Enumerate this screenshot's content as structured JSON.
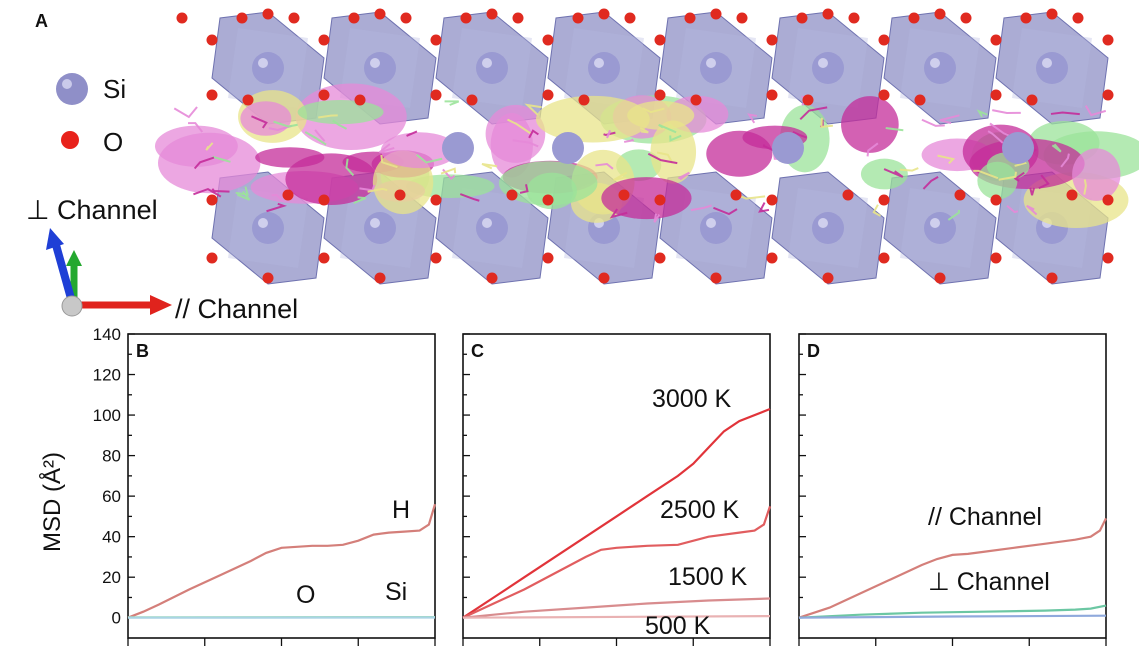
{
  "figure": {
    "panel_a": {
      "letter": "A",
      "legend": [
        {
          "label": "Si",
          "color": "#8f8fc8"
        },
        {
          "label": "O",
          "color": "#e8221b"
        }
      ],
      "axis_perp_label": "⊥ Channel",
      "axis_par_label": "// Channel",
      "colors": {
        "octahedron": "#8a8cc4",
        "si_atom": "#9a9ad2",
        "o_atom": "#e02a20",
        "trajectory_yellow": "#e8e48a",
        "trajectory_magenta": "#c42c9a",
        "trajectory_green": "#9be39a",
        "trajectory_pink": "#e68ad8"
      },
      "axis_arrow_colors": {
        "x": "#e0231d",
        "y": "#23a82f",
        "z": "#1f3fd6"
      }
    }
  },
  "chart_data": [
    {
      "type": "line",
      "panel": "B",
      "ylabel": "MSD (Å²)",
      "ylim": [
        -10,
        140
      ],
      "yticks": [
        0,
        20,
        40,
        60,
        80,
        100,
        120,
        140
      ],
      "xlim": [
        0,
        1
      ],
      "annotations": [
        "H",
        "O",
        "Si"
      ],
      "series": [
        {
          "name": "H",
          "color": "#d47f7a",
          "x": [
            0,
            0.05,
            0.1,
            0.2,
            0.3,
            0.4,
            0.45,
            0.5,
            0.55,
            0.6,
            0.65,
            0.7,
            0.75,
            0.8,
            0.85,
            0.9,
            0.95,
            0.98,
            1.0
          ],
          "y": [
            0,
            3,
            6.5,
            14,
            21,
            28,
            32,
            34.5,
            35,
            35.5,
            35.5,
            36,
            38,
            41,
            42,
            42.5,
            43,
            46,
            56
          ]
        },
        {
          "name": "O",
          "color": "#9bdcb0",
          "x": [
            0,
            1
          ],
          "y": [
            0.2,
            0.3
          ]
        },
        {
          "name": "Si",
          "color": "#a9d4e4",
          "x": [
            0,
            1
          ],
          "y": [
            0,
            0.1
          ]
        }
      ]
    },
    {
      "type": "line",
      "panel": "C",
      "ylim": [
        -10,
        140
      ],
      "xlim": [
        0,
        1
      ],
      "annotations": [
        "3000 K",
        "2500 K",
        "1500 K",
        "500 K"
      ],
      "series": [
        {
          "name": "3000 K",
          "color": "#e1343a",
          "x": [
            0,
            0.1,
            0.2,
            0.3,
            0.4,
            0.5,
            0.6,
            0.7,
            0.75,
            0.8,
            0.85,
            0.9,
            1.0
          ],
          "y": [
            0,
            10,
            20,
            30,
            40,
            50,
            60,
            70,
            76,
            84,
            92,
            97,
            103
          ]
        },
        {
          "name": "2500 K",
          "color": "#e15d5f",
          "x": [
            0,
            0.1,
            0.2,
            0.3,
            0.4,
            0.45,
            0.5,
            0.55,
            0.6,
            0.7,
            0.8,
            0.9,
            0.95,
            0.98,
            1.0
          ],
          "y": [
            0,
            7,
            14,
            22,
            30,
            33.5,
            34.5,
            35,
            35.5,
            36,
            40,
            42,
            43,
            46,
            55
          ]
        },
        {
          "name": "1500 K",
          "color": "#d88c8e",
          "x": [
            0,
            0.2,
            0.4,
            0.6,
            0.8,
            1.0
          ],
          "y": [
            0,
            3,
            5,
            7,
            8.5,
            9.5
          ]
        },
        {
          "name": "500 K",
          "color": "#e9b2b3",
          "x": [
            0,
            1
          ],
          "y": [
            0,
            0.8
          ]
        }
      ]
    },
    {
      "type": "line",
      "panel": "D",
      "ylim": [
        -10,
        140
      ],
      "xlim": [
        0,
        1
      ],
      "annotations": [
        "// Channel",
        "⊥ Channel"
      ],
      "series": [
        {
          "name": "// Channel",
          "color": "#d47f7a",
          "x": [
            0,
            0.1,
            0.2,
            0.3,
            0.4,
            0.45,
            0.5,
            0.55,
            0.6,
            0.7,
            0.8,
            0.9,
            0.95,
            0.98,
            1.0
          ],
          "y": [
            0,
            5,
            12,
            19,
            26,
            29,
            31,
            31.5,
            32.5,
            34.5,
            36.5,
            38.5,
            40,
            43,
            49
          ]
        },
        {
          "name": "⊥ Channel",
          "color": "#6cc7a3",
          "x": [
            0,
            0.2,
            0.4,
            0.6,
            0.8,
            0.9,
            0.95,
            1.0
          ],
          "y": [
            0,
            1.5,
            2.5,
            3,
            3.5,
            4,
            4.5,
            6
          ]
        },
        {
          "name": "",
          "color": "#8fa9dc",
          "x": [
            0,
            0.5,
            1.0
          ],
          "y": [
            0,
            0.6,
            1
          ]
        }
      ]
    }
  ],
  "panel_letters": [
    "B",
    "C",
    "D"
  ],
  "annotation_labels": {
    "B": [
      "H",
      "O",
      "Si"
    ],
    "C": [
      "3000 K",
      "2500 K",
      "1500 K",
      "500 K"
    ],
    "D": [
      "// Channel",
      "⊥ Channel"
    ]
  }
}
